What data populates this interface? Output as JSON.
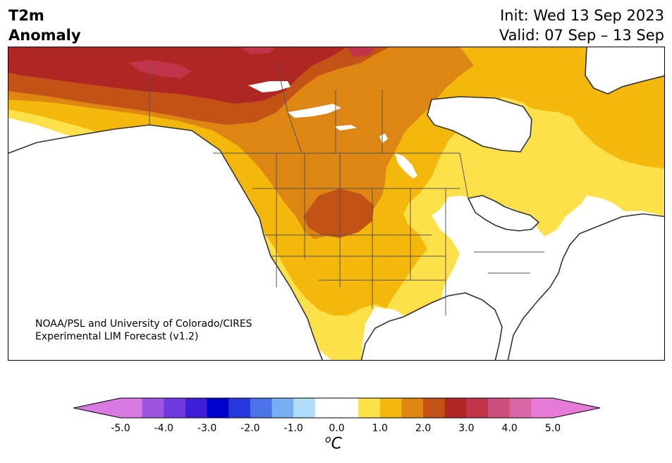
{
  "title": {
    "left_line1": "T2m",
    "left_line2": "Anomaly",
    "right_line1": "Init: Wed 13 Sep 2023",
    "right_line2": "Valid: 07 Sep – 13 Sep"
  },
  "credit": {
    "line1": "NOAA/PSL and University of Colorado/CIRES",
    "line2": "Experimental LIM Forecast (v1.2)"
  },
  "colorbar": {
    "unit_base": "C",
    "unit_super": "o",
    "tick_labels": [
      "-5.0",
      "-4.0",
      "-3.0",
      "-2.0",
      "-1.0",
      "0.0",
      "1.0",
      "2.0",
      "3.0",
      "4.0",
      "5.0"
    ],
    "bin_colors": [
      "#d97ae3",
      "#9b55e0",
      "#6e3adf",
      "#3f1fd6",
      "#0000cd",
      "#2637dc",
      "#4a73e8",
      "#76b0f0",
      "#b0ddf8",
      "#ffffff",
      "#ffffff",
      "#fde04a",
      "#f4b70c",
      "#dd8614",
      "#c25216",
      "#b02622",
      "#c23449",
      "#cc4e7c",
      "#d966a6",
      "#e77bd8"
    ],
    "colors": {
      "under": "#d97ae3",
      "over": "#e77bd8"
    }
  },
  "map_colors": {
    "land_neutral": "#ffffff",
    "plus_0_5": "#fde04a",
    "plus_1_0": "#f4b70c",
    "plus_1_5": "#dd8614",
    "plus_2_0": "#c25216",
    "plus_2_5": "#b02622",
    "plus_3_0": "#c23449",
    "coastline": "#333333",
    "ocean": "#ffffff"
  }
}
